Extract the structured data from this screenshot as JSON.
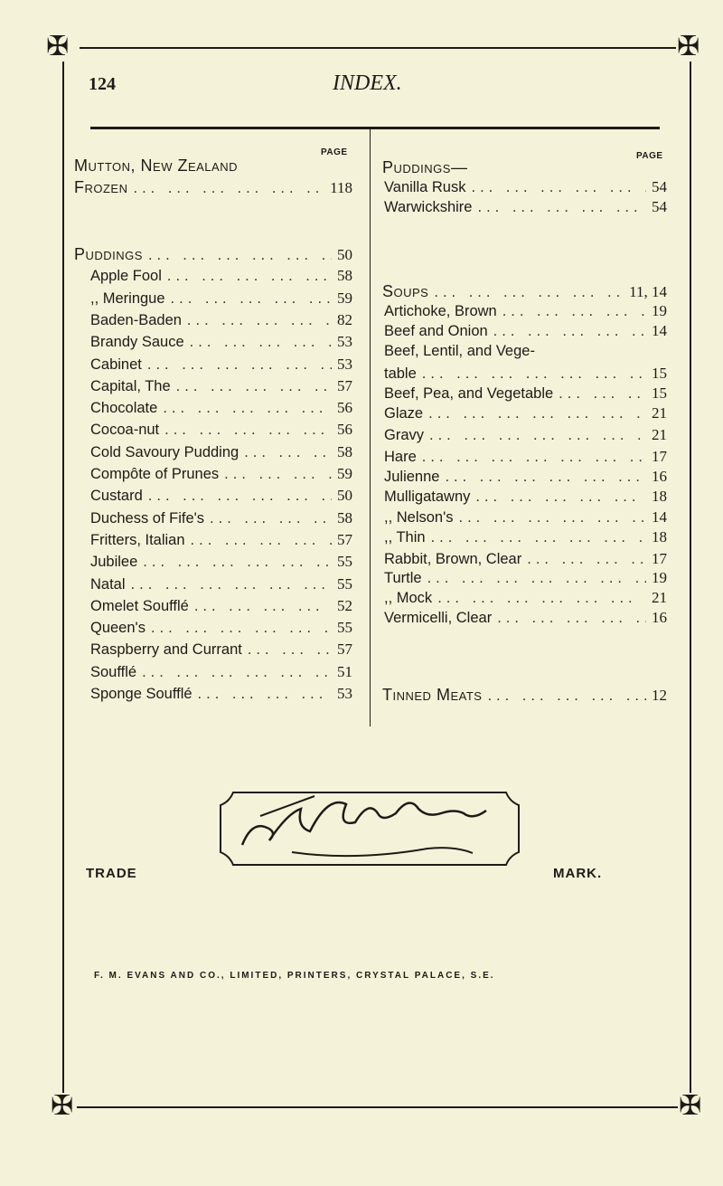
{
  "header": {
    "page_number": "124",
    "title": "INDEX."
  },
  "columns": {
    "page_label": "PAGE",
    "left": [
      {
        "name": "Mutton, New Zealand",
        "page": "",
        "head": true
      },
      {
        "name": "Frozen",
        "page": "118",
        "head": true
      },
      {
        "name": "Puddings",
        "page": "50",
        "head": true
      },
      {
        "name": "Apple Fool",
        "page": "58"
      },
      {
        "name": ",, Meringue",
        "page": "59"
      },
      {
        "name": "Baden-Baden",
        "page": "82"
      },
      {
        "name": "Brandy Sauce",
        "page": "53"
      },
      {
        "name": "Cabinet",
        "page": "53"
      },
      {
        "name": "Capital, The",
        "page": "57"
      },
      {
        "name": "Chocolate",
        "page": "56"
      },
      {
        "name": "Cocoa-nut",
        "page": "56"
      },
      {
        "name": "Cold Savoury Pudding",
        "page": "58"
      },
      {
        "name": "Compôte of Prunes",
        "page": "59"
      },
      {
        "name": "Custard",
        "page": "50"
      },
      {
        "name": "Duchess of Fife's",
        "page": "58"
      },
      {
        "name": "Fritters, Italian",
        "page": "57"
      },
      {
        "name": "Jubilee",
        "page": "55"
      },
      {
        "name": "Natal",
        "page": "55"
      },
      {
        "name": "Omelet Soufflé",
        "page": "52"
      },
      {
        "name": "Queen's",
        "page": "55"
      },
      {
        "name": "Raspberry and Currant",
        "page": "57"
      },
      {
        "name": "Soufflé",
        "page": "51"
      },
      {
        "name": "Sponge Soufflé",
        "page": "53"
      }
    ],
    "right": [
      {
        "name": "Puddings—",
        "page": "",
        "head": true
      },
      {
        "name": "Vanilla Rusk",
        "page": "54"
      },
      {
        "name": "Warwickshire",
        "page": "54"
      },
      {
        "name": "Soups",
        "page": "11, 14",
        "head": true
      },
      {
        "name": "Artichoke, Brown",
        "page": "19"
      },
      {
        "name": "Beef and Onion",
        "page": "14"
      },
      {
        "name": "Beef, Lentil, and Vege-",
        "page": ""
      },
      {
        "name": "table",
        "page": "15"
      },
      {
        "name": "Beef, Pea, and Vegetable",
        "page": "15"
      },
      {
        "name": "Glaze",
        "page": "21"
      },
      {
        "name": "Gravy",
        "page": "21"
      },
      {
        "name": "Hare",
        "page": "17"
      },
      {
        "name": "Julienne",
        "page": "16"
      },
      {
        "name": "Mulligatawny",
        "page": "18"
      },
      {
        "name": ",, Nelson's",
        "page": "14"
      },
      {
        "name": ",, Thin",
        "page": "18"
      },
      {
        "name": "Rabbit, Brown, Clear",
        "page": "17"
      },
      {
        "name": "Turtle",
        "page": "19"
      },
      {
        "name": ",, Mock",
        "page": "21"
      },
      {
        "name": "Vermicelli, Clear",
        "page": "16"
      },
      {
        "name": "Tinned Meats",
        "page": "12",
        "head": true
      }
    ]
  },
  "trademark": {
    "left": "TRADE",
    "right": "MARK.",
    "signature": "Lea & Perrins"
  },
  "footer": {
    "printer": "F. M. EVANS AND CO., LIMITED, PRINTERS, CRYSTAL PALACE, S.E."
  },
  "colors": {
    "paper": "#f5f2da",
    "ink": "#1d1b16"
  },
  "icons": [
    "maltese-cross-icon"
  ]
}
